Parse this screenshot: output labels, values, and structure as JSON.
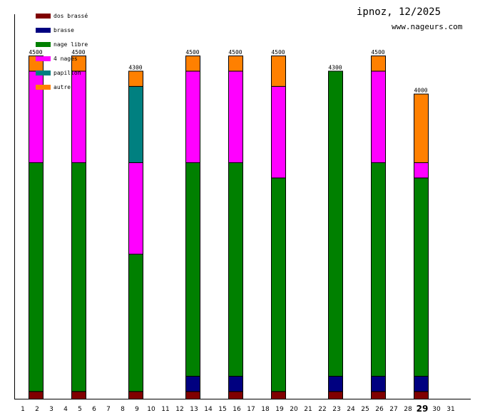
{
  "header": {
    "title": "ipnoz, 12/2025",
    "site": "www.nageurs.com"
  },
  "chart_data": {
    "type": "bar",
    "stacked": true,
    "title": "ipnoz, 12/2025",
    "xlabel": "",
    "ylabel": "",
    "ylim": [
      0,
      5040
    ],
    "x_ticks": [
      1,
      2,
      3,
      4,
      5,
      6,
      7,
      8,
      9,
      10,
      11,
      12,
      13,
      14,
      15,
      16,
      17,
      18,
      19,
      20,
      21,
      22,
      23,
      24,
      25,
      26,
      27,
      28,
      29,
      30,
      31
    ],
    "highlight_day": 29,
    "categories": [
      2,
      5,
      9,
      13,
      16,
      19,
      23,
      26,
      29
    ],
    "totals": [
      4500,
      4500,
      4300,
      4500,
      4500,
      4500,
      4300,
      4500,
      4000
    ],
    "legend_placement": "top-left",
    "series": [
      {
        "name": "dos brassé",
        "color": "#800000",
        "values": [
          100,
          100,
          100,
          100,
          100,
          100,
          100,
          100,
          100
        ]
      },
      {
        "name": "brasse",
        "color": "#000080",
        "values": [
          0,
          0,
          0,
          200,
          200,
          0,
          200,
          200,
          200
        ]
      },
      {
        "name": "nage libre",
        "color": "#008000",
        "values": [
          3000,
          3000,
          1800,
          2800,
          2800,
          2800,
          4000,
          2800,
          2600
        ]
      },
      {
        "name": "4 nages",
        "color": "#ff00ff",
        "values": [
          1200,
          1200,
          1200,
          1200,
          1200,
          1200,
          0,
          1200,
          200
        ]
      },
      {
        "name": "papillon",
        "color": "#008080",
        "values": [
          0,
          0,
          1000,
          0,
          0,
          0,
          0,
          0,
          0
        ]
      },
      {
        "name": "autre",
        "color": "#ff8000",
        "values": [
          200,
          200,
          200,
          200,
          200,
          400,
          0,
          200,
          900
        ]
      }
    ]
  }
}
